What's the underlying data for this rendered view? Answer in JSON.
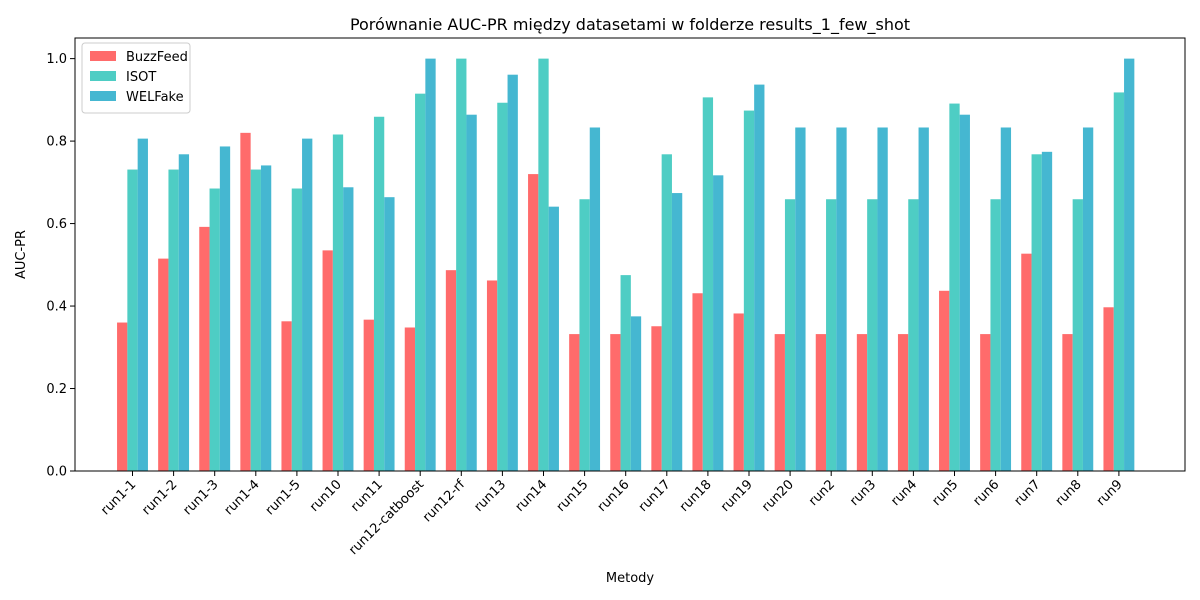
{
  "chart_data": {
    "type": "bar",
    "title": "Porównanie AUC-PR między datasetami w folderze results_1_few_shot",
    "xlabel": "Metody",
    "ylabel": "AUC-PR",
    "ylim": [
      0,
      1.05
    ],
    "yticks": [
      "0.0",
      "0.2",
      "0.4",
      "0.6",
      "0.8",
      "1.0"
    ],
    "grid": false,
    "legend_position": "top-left",
    "categories": [
      "run1-1",
      "run1-2",
      "run1-3",
      "run1-4",
      "run1-5",
      "run10",
      "run11",
      "run12-catboost",
      "run12-rf",
      "run13",
      "run14",
      "run15",
      "run16",
      "run17",
      "run18",
      "run19",
      "run20",
      "run2",
      "run3",
      "run4",
      "run5",
      "run6",
      "run7",
      "run8",
      "run9"
    ],
    "series": [
      {
        "name": "BuzzFeed",
        "color": "#ff6b6b",
        "values": [
          0.36,
          0.515,
          0.592,
          0.82,
          0.363,
          0.535,
          0.367,
          0.348,
          0.487,
          0.462,
          0.72,
          0.332,
          0.332,
          0.351,
          0.431,
          0.382,
          0.332,
          0.332,
          0.332,
          0.332,
          0.437,
          0.332,
          0.527,
          0.332,
          0.397
        ]
      },
      {
        "name": "ISOT",
        "color": "#4ecdc4",
        "values": [
          0.731,
          0.731,
          0.685,
          0.731,
          0.685,
          0.816,
          0.859,
          0.915,
          1.0,
          0.893,
          1.0,
          0.659,
          0.475,
          0.768,
          0.906,
          0.874,
          0.659,
          0.659,
          0.659,
          0.659,
          0.891,
          0.659,
          0.768,
          0.659,
          0.918
        ]
      },
      {
        "name": "WELFake",
        "color": "#45b7d1",
        "values": [
          0.806,
          0.768,
          0.787,
          0.741,
          0.806,
          0.688,
          0.664,
          1.0,
          0.864,
          0.961,
          0.641,
          0.833,
          0.375,
          0.674,
          0.717,
          0.937,
          0.833,
          0.833,
          0.833,
          0.833,
          0.864,
          0.833,
          0.774,
          0.833,
          1.0
        ]
      }
    ]
  }
}
